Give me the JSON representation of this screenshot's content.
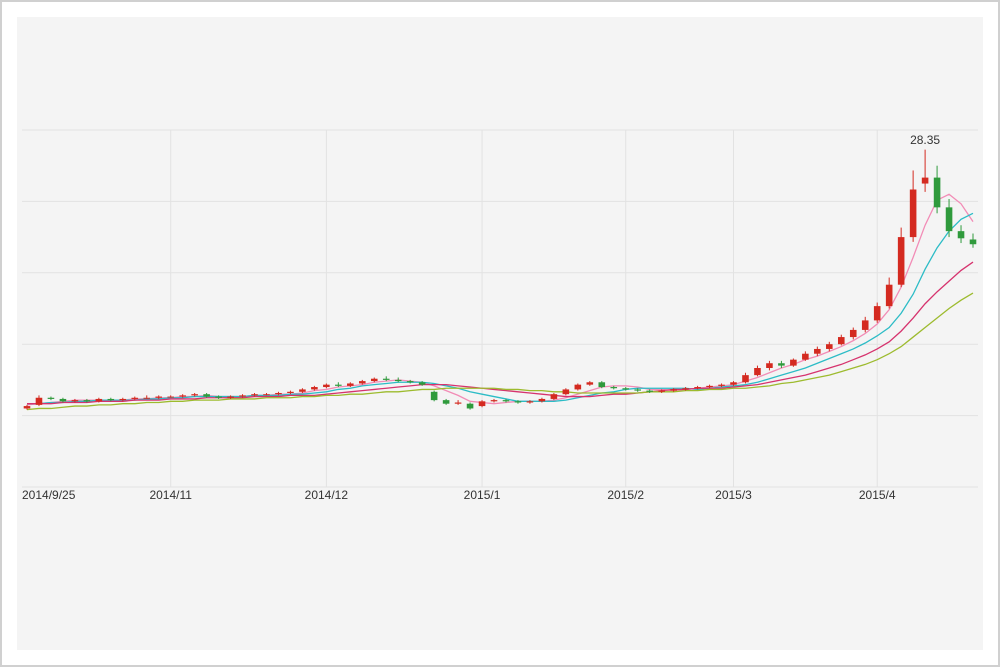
{
  "chart_data": {
    "type": "candlestick",
    "categories": [
      "2014/9/25",
      null,
      null,
      null,
      null,
      null,
      null,
      null,
      null,
      null,
      null,
      null,
      "2014/11",
      null,
      null,
      null,
      null,
      null,
      null,
      null,
      null,
      null,
      null,
      null,
      null,
      "2014/12",
      null,
      null,
      null,
      null,
      null,
      null,
      null,
      null,
      null,
      null,
      null,
      null,
      "2015/1",
      null,
      null,
      null,
      null,
      null,
      null,
      null,
      null,
      null,
      null,
      null,
      "2015/2",
      null,
      null,
      null,
      null,
      null,
      null,
      null,
      null,
      "2015/3",
      null,
      null,
      null,
      null,
      null,
      null,
      null,
      null,
      null,
      null,
      null,
      "2015/4",
      null,
      null,
      null,
      null,
      null,
      null,
      null,
      null
    ],
    "open": [
      6.6,
      6.9,
      7.5,
      7.4,
      7.2,
      7.3,
      7.2,
      7.4,
      7.3,
      7.4,
      7.5,
      7.5,
      7.6,
      7.6,
      7.7,
      7.8,
      7.6,
      7.5,
      7.6,
      7.7,
      7.8,
      7.8,
      7.9,
      8.0,
      8.2,
      8.4,
      8.6,
      8.5,
      8.7,
      8.9,
      9.1,
      9.0,
      8.9,
      8.8,
      8.0,
      7.3,
      7.0,
      7.0,
      6.8,
      7.2,
      7.3,
      7.2,
      7.1,
      7.2,
      7.4,
      7.8,
      8.2,
      8.6,
      8.8,
      8.4,
      8.3,
      8.2,
      8.1,
      8.0,
      8.1,
      8.2,
      8.3,
      8.4,
      8.5,
      8.6,
      8.8,
      9.4,
      10.0,
      10.4,
      10.2,
      10.7,
      11.2,
      11.6,
      12.0,
      12.6,
      13.2,
      14.0,
      15.2,
      17.0,
      21.0,
      25.5,
      26.0,
      23.5,
      21.5,
      20.8
    ],
    "high": [
      6.9,
      7.7,
      7.6,
      7.5,
      7.4,
      7.4,
      7.5,
      7.5,
      7.5,
      7.6,
      7.7,
      7.7,
      7.7,
      7.8,
      7.9,
      7.9,
      7.7,
      7.7,
      7.8,
      7.9,
      7.9,
      8.0,
      8.1,
      8.3,
      8.5,
      8.7,
      8.8,
      8.8,
      9.0,
      9.2,
      9.3,
      9.2,
      9.0,
      8.9,
      8.1,
      7.4,
      7.3,
      7.1,
      7.3,
      7.4,
      7.4,
      7.3,
      7.3,
      7.5,
      7.9,
      8.3,
      8.7,
      8.9,
      8.9,
      8.5,
      8.4,
      8.3,
      8.2,
      8.2,
      8.3,
      8.4,
      8.5,
      8.6,
      8.7,
      8.9,
      9.6,
      10.2,
      10.6,
      10.6,
      10.8,
      11.4,
      11.8,
      12.2,
      12.8,
      13.4,
      14.3,
      15.5,
      17.6,
      21.8,
      26.6,
      28.35,
      27.0,
      24.2,
      22.0,
      21.3
    ],
    "low": [
      6.5,
      6.8,
      7.3,
      7.1,
      7.1,
      7.1,
      7.1,
      7.2,
      7.2,
      7.3,
      7.4,
      7.4,
      7.5,
      7.5,
      7.6,
      7.5,
      7.4,
      7.4,
      7.5,
      7.6,
      7.7,
      7.7,
      7.8,
      7.9,
      8.1,
      8.3,
      8.4,
      8.4,
      8.6,
      8.8,
      8.9,
      8.8,
      8.7,
      8.5,
      7.2,
      6.9,
      6.9,
      6.5,
      6.7,
      7.1,
      7.1,
      7.0,
      7.0,
      7.1,
      7.3,
      7.7,
      8.1,
      8.5,
      8.3,
      8.2,
      8.1,
      8.0,
      7.9,
      7.9,
      8.0,
      8.1,
      8.2,
      8.3,
      8.4,
      8.5,
      8.7,
      9.3,
      9.8,
      10.0,
      10.1,
      10.6,
      11.0,
      11.4,
      11.9,
      12.4,
      13.0,
      13.8,
      15.0,
      16.8,
      20.6,
      24.8,
      23.0,
      21.0,
      20.5,
      20.1
    ],
    "close": [
      6.8,
      7.5,
      7.4,
      7.2,
      7.3,
      7.2,
      7.4,
      7.3,
      7.4,
      7.5,
      7.5,
      7.6,
      7.6,
      7.7,
      7.8,
      7.6,
      7.5,
      7.6,
      7.7,
      7.8,
      7.8,
      7.9,
      8.0,
      8.2,
      8.4,
      8.6,
      8.5,
      8.7,
      8.9,
      9.1,
      9.0,
      8.9,
      8.8,
      8.6,
      7.3,
      7.0,
      7.1,
      6.6,
      7.2,
      7.3,
      7.2,
      7.1,
      7.2,
      7.4,
      7.8,
      8.2,
      8.6,
      8.8,
      8.4,
      8.3,
      8.2,
      8.1,
      8.0,
      8.1,
      8.2,
      8.3,
      8.4,
      8.5,
      8.6,
      8.8,
      9.4,
      10.0,
      10.4,
      10.2,
      10.7,
      11.2,
      11.6,
      12.0,
      12.6,
      13.2,
      14.0,
      15.2,
      17.0,
      21.0,
      25.0,
      26.0,
      23.5,
      21.5,
      20.9,
      20.4
    ],
    "up_color": "#d42a20",
    "down_color": "#2f9a3c",
    "lines": [
      {
        "color": "#f28cb6",
        "values": [
          6.9,
          7.0,
          7.1,
          7.2,
          7.3,
          7.3,
          7.3,
          7.3,
          7.3,
          7.4,
          7.4,
          7.5,
          7.5,
          7.6,
          7.6,
          7.7,
          7.6,
          7.6,
          7.6,
          7.7,
          7.7,
          7.8,
          7.8,
          7.9,
          8.1,
          8.2,
          8.4,
          8.5,
          8.6,
          8.8,
          8.9,
          9.0,
          8.9,
          8.8,
          8.5,
          8.1,
          7.7,
          7.2,
          7.1,
          7.0,
          7.1,
          7.2,
          7.2,
          7.2,
          7.3,
          7.5,
          7.8,
          8.1,
          8.4,
          8.5,
          8.5,
          8.4,
          8.2,
          8.2,
          8.1,
          8.2,
          8.3,
          8.4,
          8.5,
          8.6,
          8.9,
          9.2,
          9.6,
          10.0,
          10.3,
          10.7,
          11.0,
          11.4,
          11.8,
          12.3,
          12.9,
          13.7,
          14.9,
          16.8,
          19.3,
          22.0,
          24.1,
          24.6,
          23.8,
          22.3
        ]
      },
      {
        "color": "#2cbcc6",
        "values": [
          7.0,
          7.0,
          7.1,
          7.1,
          7.2,
          7.2,
          7.3,
          7.3,
          7.3,
          7.3,
          7.4,
          7.4,
          7.5,
          7.5,
          7.6,
          7.6,
          7.6,
          7.6,
          7.6,
          7.7,
          7.7,
          7.7,
          7.8,
          7.8,
          7.9,
          8.0,
          8.2,
          8.3,
          8.5,
          8.6,
          8.7,
          8.8,
          8.8,
          8.8,
          8.7,
          8.5,
          8.3,
          8.0,
          7.8,
          7.6,
          7.4,
          7.2,
          7.2,
          7.2,
          7.2,
          7.3,
          7.5,
          7.7,
          7.9,
          8.0,
          8.2,
          8.3,
          8.3,
          8.3,
          8.3,
          8.3,
          8.2,
          8.3,
          8.4,
          8.5,
          8.6,
          8.8,
          9.1,
          9.4,
          9.7,
          10.0,
          10.4,
          10.8,
          11.2,
          11.6,
          12.1,
          12.7,
          13.4,
          14.6,
          16.2,
          18.3,
          20.1,
          21.5,
          22.5,
          23.0
        ]
      },
      {
        "color": "#d6336e",
        "values": [
          7.0,
          7.0,
          7.0,
          7.1,
          7.1,
          7.1,
          7.2,
          7.2,
          7.2,
          7.3,
          7.3,
          7.3,
          7.4,
          7.4,
          7.4,
          7.5,
          7.5,
          7.5,
          7.5,
          7.6,
          7.6,
          7.6,
          7.7,
          7.7,
          7.7,
          7.8,
          7.9,
          8.0,
          8.1,
          8.2,
          8.3,
          8.4,
          8.5,
          8.6,
          8.6,
          8.6,
          8.5,
          8.4,
          8.3,
          8.2,
          8.1,
          8.0,
          7.9,
          7.8,
          7.7,
          7.6,
          7.6,
          7.6,
          7.7,
          7.8,
          7.8,
          7.9,
          8.0,
          8.1,
          8.2,
          8.2,
          8.3,
          8.3,
          8.3,
          8.4,
          8.5,
          8.6,
          8.8,
          9.0,
          9.2,
          9.4,
          9.7,
          10.0,
          10.3,
          10.7,
          11.1,
          11.6,
          12.2,
          13.1,
          14.2,
          15.4,
          16.4,
          17.3,
          18.2,
          18.9
        ]
      },
      {
        "color": "#9dbb2e",
        "values": [
          6.5,
          6.6,
          6.6,
          6.7,
          6.8,
          6.8,
          6.9,
          6.9,
          7.0,
          7.0,
          7.1,
          7.1,
          7.2,
          7.2,
          7.3,
          7.3,
          7.3,
          7.4,
          7.4,
          7.4,
          7.5,
          7.5,
          7.5,
          7.6,
          7.6,
          7.7,
          7.7,
          7.8,
          7.8,
          7.9,
          8.0,
          8.0,
          8.1,
          8.2,
          8.2,
          8.3,
          8.3,
          8.3,
          8.3,
          8.3,
          8.2,
          8.2,
          8.1,
          8.1,
          8.0,
          8.0,
          7.9,
          7.9,
          7.9,
          7.9,
          7.9,
          7.9,
          8.0,
          8.0,
          8.0,
          8.1,
          8.1,
          8.2,
          8.2,
          8.3,
          8.3,
          8.4,
          8.5,
          8.7,
          8.8,
          9.0,
          9.2,
          9.4,
          9.7,
          10.0,
          10.3,
          10.7,
          11.2,
          11.8,
          12.6,
          13.4,
          14.2,
          15.0,
          15.7,
          16.3
        ]
      }
    ],
    "ylim": [
      0,
      30
    ],
    "yticks": [
      0,
      6,
      12,
      18,
      24,
      30
    ],
    "grid": true
  }
}
